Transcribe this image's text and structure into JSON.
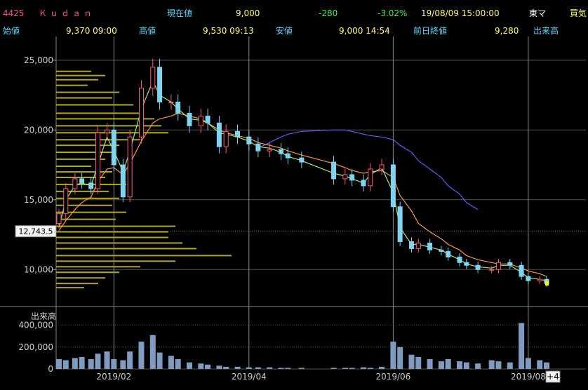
{
  "header": {
    "code": "4425",
    "name": "Ｋｕｄａｎ",
    "current_label": "現在値",
    "current_value": "9,000",
    "change": "-280",
    "change_pct": "-3.02%",
    "datetime": "19/08/09  15:00:00",
    "market": "東マ",
    "buy_label": "買気",
    "open_label": "始値",
    "open_value": "9,370  09:00",
    "high_label": "高値",
    "high_value": "9,530  09:13",
    "low_label": "安値",
    "low_value": "9,000  14:54",
    "prev_close_label": "前日終値",
    "prev_close_value": "9,280",
    "volume_label": "出来高"
  },
  "chart": {
    "y_ticks": [
      "25,000",
      "20,000",
      "15,000",
      "10,000"
    ],
    "vol_label": "出来高",
    "vol_ticks": [
      "400,000",
      "200,000",
      "0"
    ],
    "x_ticks": [
      "2019/02",
      "2019/04",
      "2019/06",
      "2019/08"
    ],
    "marker_label": "12,743.5",
    "plus_label": "+4",
    "colors": {
      "up": "#ff5a78",
      "down": "#7fd4f0",
      "ma_short": "#9cf06a",
      "ma_mid": "#ff9a3a",
      "ma_long": "#5a5aff",
      "profile": "#b0a81e",
      "volume": "#7f9bc0",
      "grid": "#505050",
      "last_price": "#ffff00"
    }
  },
  "chart_data": {
    "type": "candlestick",
    "price_ylim": [
      7500,
      26700
    ],
    "volume_ylim": [
      0,
      500000
    ],
    "x": [
      "2019-01-08",
      "2019-01-11",
      "2019-01-15",
      "2019-01-18",
      "2019-01-22",
      "2019-01-25",
      "2019-01-29",
      "2019-02-01",
      "2019-02-05",
      "2019-02-08",
      "2019-02-13",
      "2019-02-18",
      "2019-02-21",
      "2019-02-26",
      "2019-03-01",
      "2019-03-06",
      "2019-03-11",
      "2019-03-14",
      "2019-03-19",
      "2019-03-22",
      "2019-03-27",
      "2019-04-01",
      "2019-04-05",
      "2019-04-10",
      "2019-04-15",
      "2019-04-18",
      "2019-04-24",
      "2019-05-08",
      "2019-05-13",
      "2019-05-16",
      "2019-05-21",
      "2019-05-24",
      "2019-05-29",
      "2019-06-03",
      "2019-06-06",
      "2019-06-11",
      "2019-06-14",
      "2019-06-19",
      "2019-06-24",
      "2019-06-27",
      "2019-07-02",
      "2019-07-05",
      "2019-07-10",
      "2019-07-16",
      "2019-07-19",
      "2019-07-24",
      "2019-07-29",
      "2019-08-01",
      "2019-08-06",
      "2019-08-09"
    ],
    "close": [
      14000,
      15800,
      16500,
      16200,
      15800,
      19800,
      20000,
      17500,
      15200,
      19500,
      23000,
      24500,
      22000,
      22000,
      21200,
      20300,
      21000,
      20500,
      18800,
      19900,
      19500,
      19000,
      18500,
      18600,
      18300,
      18000,
      17700,
      16500,
      16800,
      16400,
      16000,
      17200,
      17500,
      14500,
      12000,
      11500,
      11900,
      11400,
      11300,
      10900,
      10500,
      10300,
      10000,
      10000,
      10500,
      10300,
      9500,
      9200,
      9300,
      9000
    ],
    "volume": [
      90000,
      80000,
      100000,
      110000,
      90000,
      140000,
      160000,
      90000,
      80000,
      160000,
      250000,
      310000,
      150000,
      120000,
      90000,
      60000,
      50000,
      40000,
      30000,
      20000,
      20000,
      15000,
      15000,
      15000,
      10000,
      10000,
      10000,
      10000,
      10000,
      10000,
      15000,
      10000,
      20000,
      250000,
      200000,
      130000,
      110000,
      90000,
      70000,
      90000,
      70000,
      60000,
      50000,
      80000,
      70000,
      60000,
      420000,
      100000,
      80000,
      60000
    ],
    "ma_short": [
      13000,
      15000,
      16000,
      16200,
      16000,
      17500,
      19500,
      18500,
      17000,
      18500,
      21500,
      23500,
      22500,
      22000,
      21500,
      20800,
      20700,
      20500,
      19800,
      19700,
      19500,
      19200,
      18800,
      18700,
      18400,
      18100,
      17800,
      16900,
      16700,
      16500,
      16200,
      16800,
      17300,
      15500,
      13000,
      11800,
      11800,
      11600,
      11400,
      11100,
      10700,
      10400,
      10200,
      10100,
      10300,
      10300,
      9800,
      9400,
      9300,
      9200
    ],
    "ma_mid": [
      12800,
      13500,
      14300,
      14800,
      15200,
      16300,
      17200,
      17300,
      16800,
      17600,
      19200,
      20500,
      20800,
      21000,
      21200,
      21000,
      20800,
      20500,
      20000,
      19800,
      19600,
      19400,
      19100,
      18900,
      18700,
      18500,
      18200,
      17600,
      17300,
      17100,
      16900,
      17000,
      17100,
      16600,
      15300,
      14200,
      13300,
      12700,
      12200,
      11800,
      11400,
      11000,
      10700,
      10500,
      10400,
      10400,
      10100,
      9900,
      9700,
      9500
    ],
    "ma_long": [
      null,
      null,
      null,
      null,
      null,
      null,
      null,
      null,
      null,
      null,
      null,
      null,
      null,
      null,
      null,
      null,
      null,
      null,
      null,
      null,
      null,
      null,
      18700,
      19100,
      19500,
      19700,
      19900,
      20000,
      20000,
      19900,
      19700,
      19600,
      19500,
      19300,
      18900,
      18400,
      17800,
      17200,
      16600,
      16000,
      15400,
      14800,
      14300,
      null,
      null,
      null,
      null,
      null,
      null,
      null
    ],
    "last_close": 9000,
    "marker_value": 12743.5
  }
}
